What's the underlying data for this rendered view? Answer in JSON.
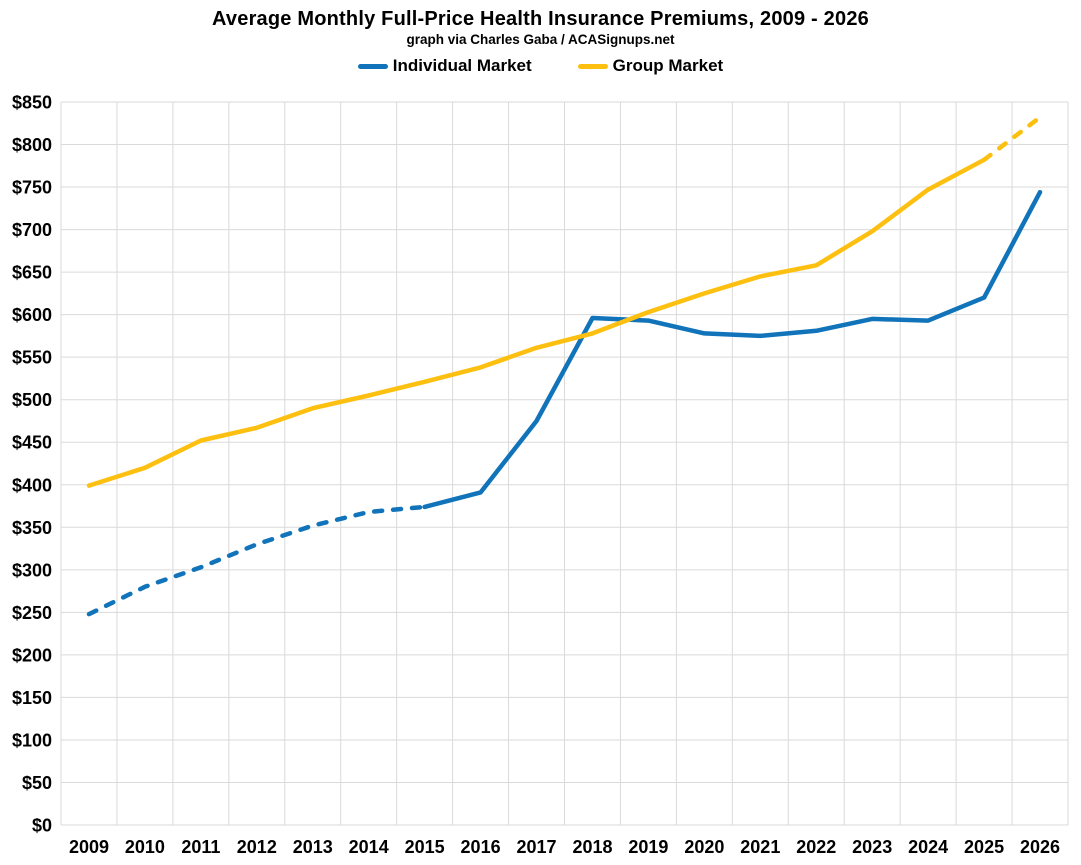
{
  "chart_data": {
    "type": "line",
    "title": "Average Monthly Full-Price Health Insurance Premiums, 2009 - 2026",
    "subtitle": "graph via Charles Gaba / ACASignups.net",
    "x": [
      2009,
      2010,
      2011,
      2012,
      2013,
      2014,
      2015,
      2016,
      2017,
      2018,
      2019,
      2020,
      2021,
      2022,
      2023,
      2024,
      2025,
      2026
    ],
    "series": [
      {
        "name": "Individual Market",
        "color": "#1173B9",
        "values": [
          248,
          280,
          303,
          330,
          352,
          368,
          374,
          391,
          475,
          596,
          593,
          578,
          575,
          581,
          595,
          593,
          620,
          744
        ],
        "dashed_segment": [
          0,
          6
        ]
      },
      {
        "name": "Group Market",
        "color": "#FDC010",
        "values": [
          399,
          420,
          452,
          467,
          490,
          505,
          521,
          538,
          561,
          578,
          603,
          625,
          645,
          658,
          698,
          747,
          782,
          832
        ],
        "dashed_segment": [
          16,
          17
        ]
      }
    ],
    "ylim": [
      0,
      850
    ],
    "ytick_step": 50,
    "ytick_prefix": "$",
    "xlabel": "",
    "ylabel": "",
    "grid": true,
    "legend_position": "top",
    "gridline_color": "#DADADA",
    "background_color": "#FFFFFF"
  }
}
